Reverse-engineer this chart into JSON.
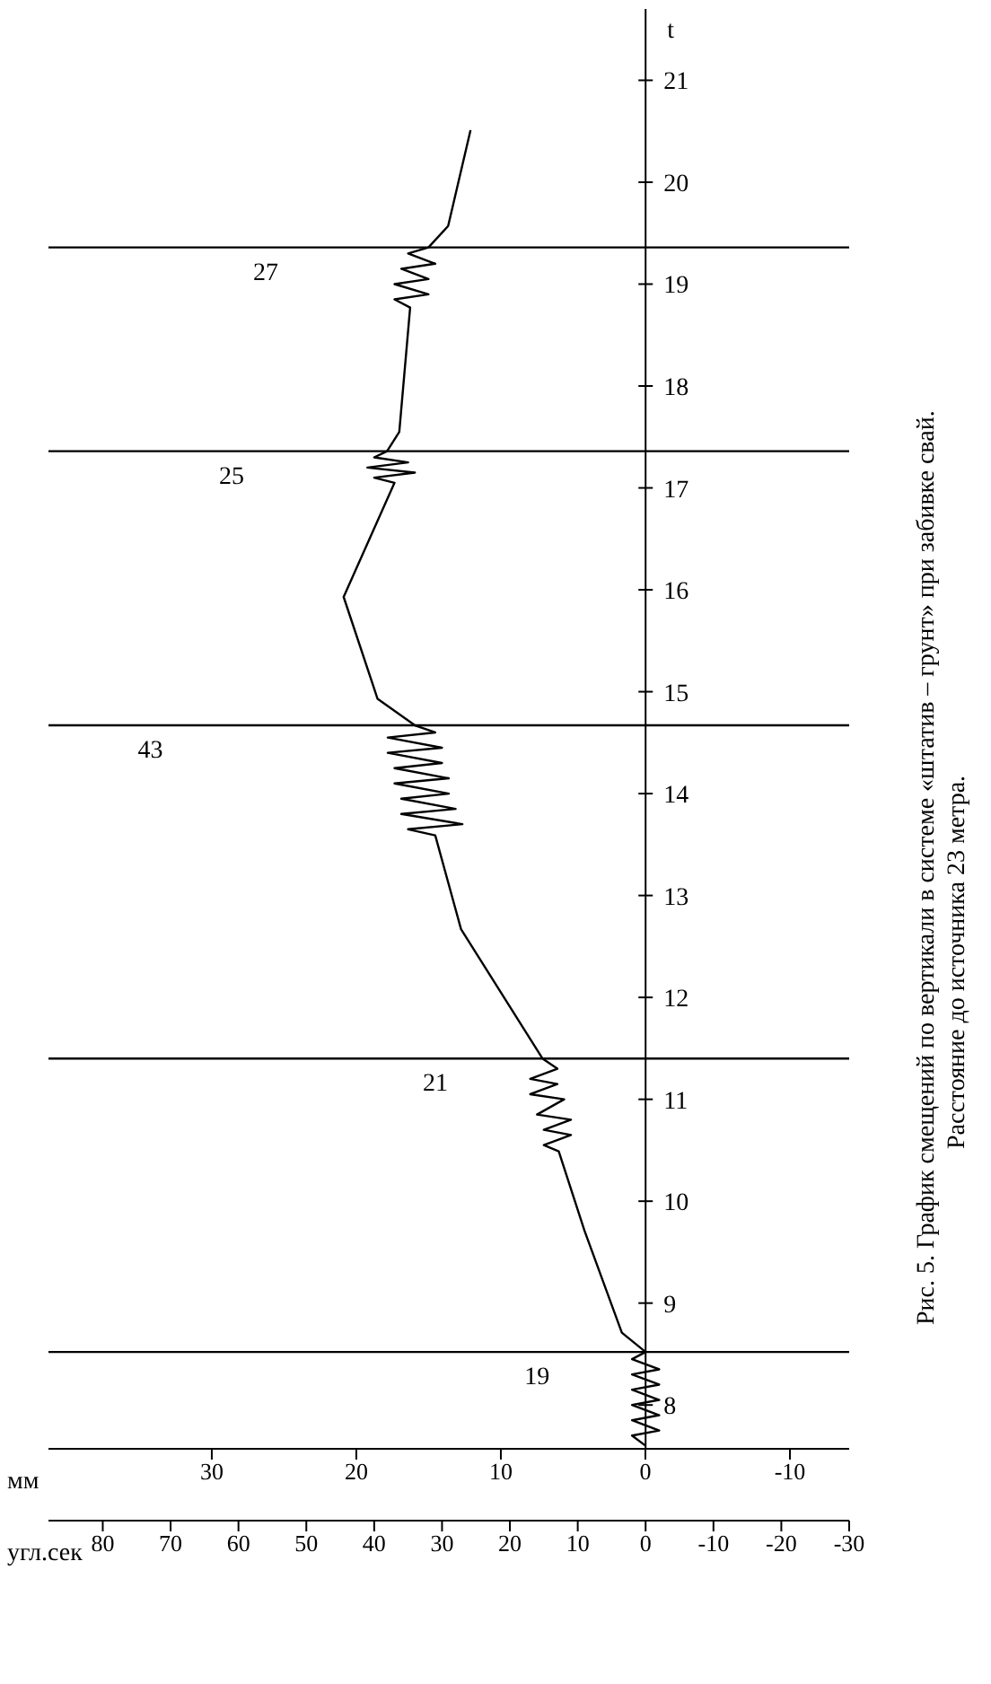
{
  "chart_data": {
    "type": "line",
    "title": "Рис. 5.  График смещений по вертикали в системе «штатив – грунт» при забивке свай.",
    "subtitle": "Расстояние до источника 23 метра.",
    "ylabel": "t",
    "xlabel": "угл.сек",
    "x2label": "мм",
    "ylim": [
      7.57,
      21.7
    ],
    "yticks": [
      8,
      9,
      10,
      11,
      12,
      13,
      14,
      15,
      16,
      17,
      18,
      19,
      20,
      21
    ],
    "xlim": [
      88,
      -30
    ],
    "xticks": [
      80,
      70,
      60,
      50,
      40,
      30,
      20,
      10,
      0,
      -10,
      -20,
      -30
    ],
    "x2lim": [
      41.3,
      -14.1
    ],
    "x2ticks": [
      30,
      20,
      10,
      0,
      -10
    ],
    "grid": false,
    "legend": false,
    "marker": "none",
    "line_style": "solid",
    "series": [
      {
        "color": "#000000",
        "x": [
          0,
          2,
          -2,
          2,
          -2,
          2,
          -2,
          2,
          -2,
          2,
          -2,
          2,
          0,
          3.5,
          9,
          12.8,
          15,
          11,
          15,
          11,
          16,
          12,
          17,
          13,
          17,
          13,
          15.2,
          27.2,
          31,
          35,
          27,
          36,
          28,
          36,
          29,
          37,
          29,
          37,
          30,
          38,
          30,
          38,
          31,
          34,
          39.5,
          44.5,
          37,
          40,
          34,
          41,
          35,
          40,
          38.1,
          36.3,
          34.7,
          37,
          32,
          37,
          32,
          36,
          31,
          35,
          32,
          29.1,
          25.8
        ],
        "values": [
          7.6,
          7.7,
          7.75,
          7.85,
          7.9,
          8.0,
          8.05,
          8.15,
          8.2,
          8.3,
          8.35,
          8.45,
          8.52,
          8.71,
          9.71,
          10.49,
          10.55,
          10.65,
          10.7,
          10.8,
          10.85,
          11.0,
          11.05,
          11.15,
          11.2,
          11.3,
          11.4,
          12.67,
          13.59,
          13.65,
          13.7,
          13.8,
          13.85,
          13.95,
          14.0,
          14.1,
          14.15,
          14.25,
          14.3,
          14.4,
          14.45,
          14.55,
          14.6,
          14.67,
          14.93,
          15.93,
          17.05,
          17.1,
          17.15,
          17.2,
          17.25,
          17.3,
          17.36,
          17.55,
          18.77,
          18.85,
          18.9,
          19.0,
          19.05,
          19.15,
          19.2,
          19.3,
          19.36,
          19.57,
          20.51
        ]
      }
    ],
    "ref_lines": [
      {
        "axis": "y",
        "value": 8.52,
        "color": "#000000"
      },
      {
        "axis": "y",
        "value": 11.4,
        "color": "#000000"
      },
      {
        "axis": "y",
        "value": 14.67,
        "color": "#000000"
      },
      {
        "axis": "y",
        "value": 17.36,
        "color": "#000000"
      },
      {
        "axis": "y",
        "value": 19.36,
        "color": "#000000"
      }
    ],
    "annotations": [
      {
        "text": "19",
        "x": 16,
        "y": 8.52
      },
      {
        "text": "21",
        "x": 31,
        "y": 11.4
      },
      {
        "text": "43",
        "x": 73,
        "y": 14.67
      },
      {
        "text": "25",
        "x": 61,
        "y": 17.36
      },
      {
        "text": "27",
        "x": 56,
        "y": 19.36
      }
    ]
  }
}
